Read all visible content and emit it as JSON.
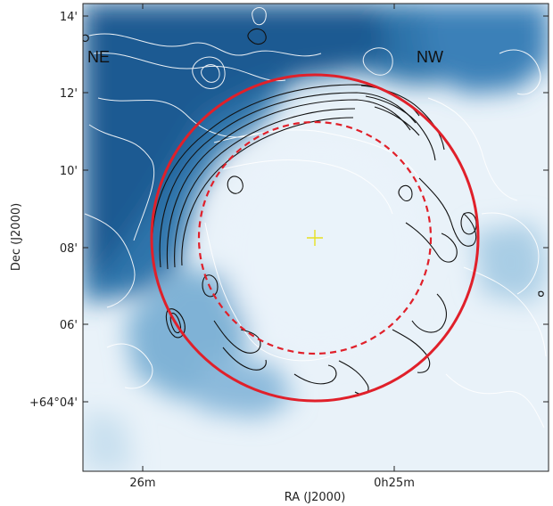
{
  "chart_data": {
    "type": "heatmap",
    "title": "",
    "xlabel": "RA (J2000)",
    "ylabel": "Dec (J2000)",
    "x_ticks": [
      "26m",
      "0h25m"
    ],
    "y_ticks": [
      "14'",
      "12'",
      "10'",
      "08'",
      "06'",
      "+64°04'"
    ],
    "annotations": {
      "ne": "NE",
      "nw": "NW"
    },
    "colormap": "Blues",
    "colors": {
      "outer_circle": "#e0202a",
      "inner_circle": "#e0202a",
      "center_marker": "#e6e020",
      "dark_contours": "#111111",
      "light_contours": "#ffffff",
      "heat_dark": "#1d5a92",
      "heat_mid": "#6fa7cf",
      "heat_light": "#e8f2f9"
    },
    "grid": false,
    "legend": "none"
  }
}
